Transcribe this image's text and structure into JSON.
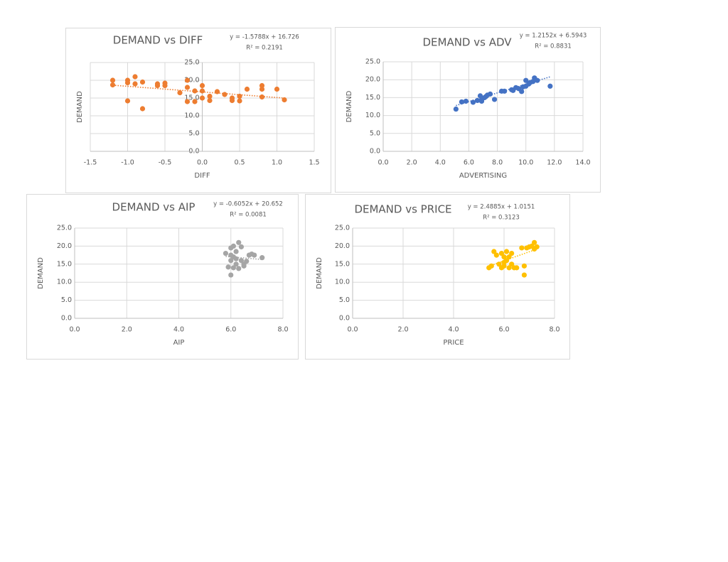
{
  "chart_data": [
    {
      "type": "scatter",
      "title": "DEMAND vs DIFF",
      "x_label": "DIFF",
      "y_label": "DEMAND",
      "color": "#ED7D31",
      "grid": true,
      "x": [
        -1.2,
        -1.2,
        -1.0,
        -1.0,
        -1.0,
        -0.9,
        -0.9,
        -0.8,
        -0.8,
        -0.6,
        -0.6,
        -0.5,
        -0.5,
        -0.3,
        -0.2,
        -0.2,
        -0.2,
        -0.1,
        -0.1,
        0,
        0,
        0,
        0.1,
        0.1,
        0.2,
        0.3,
        0.4,
        0.4,
        0.5,
        0.5,
        0.6,
        0.8,
        0.8,
        0.8,
        1.0,
        1.1
      ],
      "values": [
        20,
        18.7,
        20,
        19.3,
        14.2,
        21,
        19,
        19.5,
        12,
        18.5,
        19,
        18.5,
        19.2,
        16.5,
        20,
        18,
        14,
        17,
        14,
        18.5,
        17,
        15,
        15.5,
        14.3,
        16.8,
        16,
        14.3,
        15,
        14.2,
        15.5,
        17.5,
        18.5,
        17.5,
        15.3,
        17.5,
        14.5
      ],
      "xlim": [
        -1.5,
        1.5
      ],
      "ylim": [
        0,
        25
      ],
      "xticks": [
        -1.5,
        {
          "value": -1,
          "label": "-1.0"
        },
        -0.5,
        {
          "value": 0,
          "label": "0.0"
        },
        0.5,
        {
          "value": 1,
          "label": "1.0"
        },
        1.5
      ],
      "yticks": [
        {
          "value": 0,
          "label": "0.0"
        },
        {
          "value": 5,
          "label": "5.0"
        },
        {
          "value": 10,
          "label": "10.0"
        },
        {
          "value": 15,
          "label": "15.0"
        },
        {
          "value": 20,
          "label": "20.0"
        },
        {
          "value": 25,
          "label": "25.0"
        }
      ],
      "trendline": {
        "slope": -1.5788,
        "intercept": 16.726,
        "equation": "y = -1.5788x + 16.726",
        "r_squared": "R² = 0.2191"
      }
    },
    {
      "type": "scatter",
      "title": "DEMAND vs ADV",
      "x_label": "ADVERTISING",
      "y_label": "DEMAND",
      "color": "#4472C4",
      "grid": true,
      "x": [
        5.1,
        5.5,
        5.8,
        6.3,
        6.6,
        6.8,
        6.9,
        7.1,
        7.3,
        7.5,
        7.8,
        8.3,
        8.5,
        9,
        9.3,
        9.5,
        9.7,
        9.8,
        10,
        10,
        10.3,
        10.5,
        10.6,
        10.8,
        11.7,
        6.9,
        7.2,
        9.1,
        10.2
      ],
      "values": [
        11.8,
        13.8,
        14,
        13.7,
        14.2,
        15.5,
        14,
        15,
        15.7,
        16,
        14.5,
        16.8,
        16.8,
        17.2,
        17.8,
        17.5,
        16.7,
        18,
        19.8,
        18.2,
        19.2,
        19.5,
        20.5,
        19.8,
        18.2,
        14.5,
        15.3,
        17,
        18.8
      ],
      "xlim": [
        0,
        14
      ],
      "ylim": [
        0,
        25
      ],
      "xticks": [
        {
          "value": 0,
          "label": "0.0"
        },
        {
          "value": 2,
          "label": "2.0"
        },
        {
          "value": 4,
          "label": "4.0"
        },
        {
          "value": 6,
          "label": "6.0"
        },
        {
          "value": 8,
          "label": "8.0"
        },
        {
          "value": 10,
          "label": "10.0"
        },
        {
          "value": 12,
          "label": "12.0"
        },
        {
          "value": 14,
          "label": "14.0"
        }
      ],
      "yticks": [
        {
          "value": 0,
          "label": "0.0"
        },
        {
          "value": 5,
          "label": "5.0"
        },
        {
          "value": 10,
          "label": "10.0"
        },
        {
          "value": 15,
          "label": "15.0"
        },
        {
          "value": 20,
          "label": "20.0"
        },
        {
          "value": 25,
          "label": "25.0"
        }
      ],
      "trendline": {
        "slope": 1.2152,
        "intercept": 6.5943,
        "equation": "y = 1.2152x + 6.5943",
        "r_squared": "R² = 0.8831"
      }
    },
    {
      "type": "scatter",
      "title": "DEMAND vs AIP",
      "x_label": "AIP",
      "y_label": "DEMAND",
      "color": "#A5A5A5",
      "grid": true,
      "x": [
        5.8,
        5.9,
        6.0,
        6.0,
        6.0,
        6.1,
        6.1,
        6.1,
        6.2,
        6.2,
        6.3,
        6.3,
        6.4,
        6.4,
        6.5,
        6.5,
        6.6,
        6.7,
        6.8,
        6.9,
        7.2,
        6.2,
        6.0
      ],
      "values": [
        18,
        14.2,
        19.5,
        16,
        12,
        20,
        17,
        14,
        18.5,
        15,
        21,
        13.8,
        19.8,
        16,
        15,
        14.5,
        15.8,
        17.5,
        17.8,
        17.5,
        16.8,
        16.5,
        17.5
      ],
      "xlim": [
        0,
        8
      ],
      "ylim": [
        0,
        25
      ],
      "xticks": [
        {
          "value": 0,
          "label": "0.0"
        },
        {
          "value": 2,
          "label": "2.0"
        },
        {
          "value": 4,
          "label": "4.0"
        },
        {
          "value": 6,
          "label": "6.0"
        },
        {
          "value": 8,
          "label": "8.0"
        }
      ],
      "yticks": [
        {
          "value": 0,
          "label": "0.0"
        },
        {
          "value": 5,
          "label": "5.0"
        },
        {
          "value": 10,
          "label": "10.0"
        },
        {
          "value": 15,
          "label": "15.0"
        },
        {
          "value": 20,
          "label": "20.0"
        },
        {
          "value": 25,
          "label": "25.0"
        }
      ],
      "trendline": {
        "slope": -0.6052,
        "intercept": 20.652,
        "equation": "y = -0.6052x + 20.652",
        "r_squared": "R² = 0.0081"
      }
    },
    {
      "type": "scatter",
      "title": "DEMAND vs PRICE",
      "x_label": "PRICE",
      "y_label": "DEMAND",
      "color": "#FFC000",
      "grid": true,
      "x": [
        5.4,
        5.5,
        5.6,
        5.7,
        5.8,
        5.9,
        5.9,
        6,
        6,
        6.1,
        6.1,
        6.2,
        6.3,
        6.3,
        6.4,
        6.5,
        6.8,
        6.8,
        6.7,
        6.9,
        7,
        7.1,
        7.2,
        7.2,
        7.3,
        6.2,
        6.0
      ],
      "values": [
        14,
        14.5,
        18.5,
        17.5,
        15,
        18,
        14,
        17,
        15.5,
        18.5,
        16,
        14,
        18,
        15,
        14,
        14,
        12,
        14.5,
        19.5,
        19.5,
        19.8,
        20,
        21,
        19.2,
        19.8,
        17,
        14.5
      ],
      "xlim": [
        0,
        8
      ],
      "ylim": [
        0,
        25
      ],
      "xticks": [
        {
          "value": 0,
          "label": "0.0"
        },
        {
          "value": 2,
          "label": "2.0"
        },
        {
          "value": 4,
          "label": "4.0"
        },
        {
          "value": 6,
          "label": "6.0"
        },
        {
          "value": 8,
          "label": "8.0"
        }
      ],
      "yticks": [
        {
          "value": 0,
          "label": "0.0"
        },
        {
          "value": 5,
          "label": "5.0"
        },
        {
          "value": 10,
          "label": "10.0"
        },
        {
          "value": 15,
          "label": "15.0"
        },
        {
          "value": 20,
          "label": "20.0"
        },
        {
          "value": 25,
          "label": "25.0"
        }
      ],
      "trendline": {
        "slope": 2.4885,
        "intercept": 1.0151,
        "equation": "y = 2.4885x + 1.0151",
        "r_squared": "R² = 0.3123"
      }
    }
  ]
}
